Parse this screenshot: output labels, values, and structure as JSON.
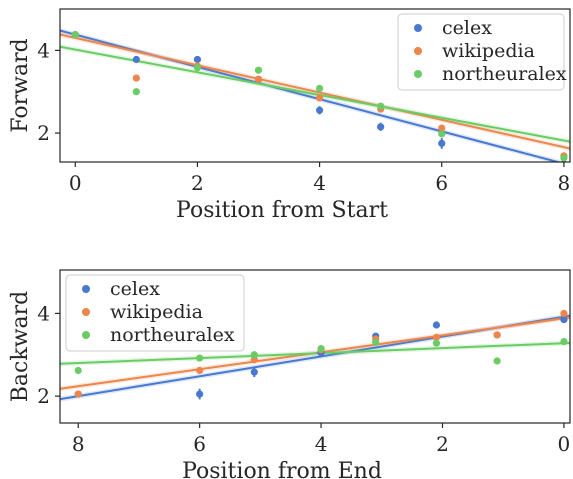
{
  "colors": {
    "celex": "#4878d0",
    "wikipedia": "#ee854a",
    "northeuralex": "#6acc64",
    "axes": "#262626"
  },
  "chart_data": [
    {
      "type": "scatter",
      "xlabel": "Position from Start",
      "ylabel": "Forward",
      "xlim": [
        -0.25,
        8.1
      ],
      "ylim": [
        1.3,
        5.0
      ],
      "x_reversed": false,
      "xticks": [
        0,
        2,
        4,
        6,
        8
      ],
      "xtick_labels": [
        "0",
        "2",
        "4",
        "6",
        "8"
      ],
      "yticks": [
        2,
        4
      ],
      "ytick_labels": [
        "2",
        "4"
      ],
      "grid": false,
      "legend_placement": "top-right",
      "series": [
        {
          "name": "celex",
          "points": [
            [
              0,
              4.38
            ],
            [
              1,
              3.78
            ],
            [
              2,
              3.78
            ],
            [
              3,
              3.3
            ],
            [
              4,
              2.55
            ],
            [
              5,
              2.15
            ],
            [
              6,
              1.75
            ],
            [
              8,
              1.25
            ]
          ],
          "errors": [
            0.03,
            0.04,
            0.05,
            0.06,
            0.1,
            0.1,
            0.13,
            0.05
          ],
          "fit": [
            4.38,
            -0.39
          ]
        },
        {
          "name": "wikipedia",
          "points": [
            [
              0,
              4.38
            ],
            [
              1,
              3.33
            ],
            [
              2,
              3.62
            ],
            [
              3,
              3.3
            ],
            [
              4,
              2.85
            ],
            [
              5,
              2.58
            ],
            [
              6,
              2.12
            ],
            [
              8,
              1.45
            ]
          ],
          "errors": [
            0.03,
            0.03,
            0.03,
            0.04,
            0.05,
            0.05,
            0.06,
            0.05
          ],
          "fit": [
            4.3,
            -0.33
          ]
        },
        {
          "name": "northeuralex",
          "points": [
            [
              0,
              4.38
            ],
            [
              1,
              3.0
            ],
            [
              2,
              3.58
            ],
            [
              3,
              3.52
            ],
            [
              4,
              3.08
            ],
            [
              5,
              2.65
            ],
            [
              6,
              1.98
            ],
            [
              8,
              1.4
            ]
          ],
          "errors": [
            0.03,
            0.03,
            0.03,
            0.03,
            0.04,
            0.04,
            0.05,
            0.05
          ],
          "fit": [
            4.02,
            -0.275
          ]
        }
      ]
    },
    {
      "type": "scatter",
      "xlabel": "Position from End",
      "ylabel": "Backward",
      "xlim": [
        8.3,
        -0.1
      ],
      "ylim": [
        1.35,
        5.05
      ],
      "x_reversed": true,
      "xticks": [
        8,
        6,
        4,
        2,
        0
      ],
      "xtick_labels": [
        "8",
        "6",
        "4",
        "2",
        "0"
      ],
      "yticks": [
        2,
        4
      ],
      "ytick_labels": [
        "2",
        "4"
      ],
      "grid": false,
      "legend_placement": "top-left",
      "series": [
        {
          "name": "celex",
          "points": [
            [
              8,
              2.05
            ],
            [
              6,
              2.05
            ],
            [
              5.1,
              2.58
            ],
            [
              4,
              3.05
            ],
            [
              3.1,
              3.45
            ],
            [
              2.1,
              3.72
            ],
            [
              1.1,
              3.48
            ],
            [
              0,
              3.85
            ]
          ],
          "errors": [
            0.04,
            0.13,
            0.12,
            0.08,
            0.07,
            0.05,
            0.05,
            0.06
          ],
          "fit": [
            3.92,
            -0.24
          ]
        },
        {
          "name": "wikipedia",
          "points": [
            [
              8,
              2.05
            ],
            [
              6,
              2.62
            ],
            [
              5.1,
              2.88
            ],
            [
              4,
              3.12
            ],
            [
              3.1,
              3.38
            ],
            [
              2.1,
              3.42
            ],
            [
              1.1,
              3.48
            ],
            [
              0,
              4.0
            ]
          ],
          "errors": [
            0.03,
            0.03,
            0.04,
            0.04,
            0.04,
            0.04,
            0.04,
            0.04
          ],
          "fit": [
            3.88,
            -0.205
          ]
        },
        {
          "name": "northeuralex",
          "points": [
            [
              8,
              2.62
            ],
            [
              6,
              2.92
            ],
            [
              5.1,
              3.0
            ],
            [
              4,
              3.15
            ],
            [
              3.1,
              3.3
            ],
            [
              2.1,
              3.28
            ],
            [
              1.1,
              2.85
            ],
            [
              0,
              3.32
            ]
          ],
          "errors": [
            0.03,
            0.03,
            0.03,
            0.03,
            0.03,
            0.03,
            0.03,
            0.03
          ],
          "fit": [
            3.28,
            -0.06
          ]
        }
      ]
    }
  ]
}
